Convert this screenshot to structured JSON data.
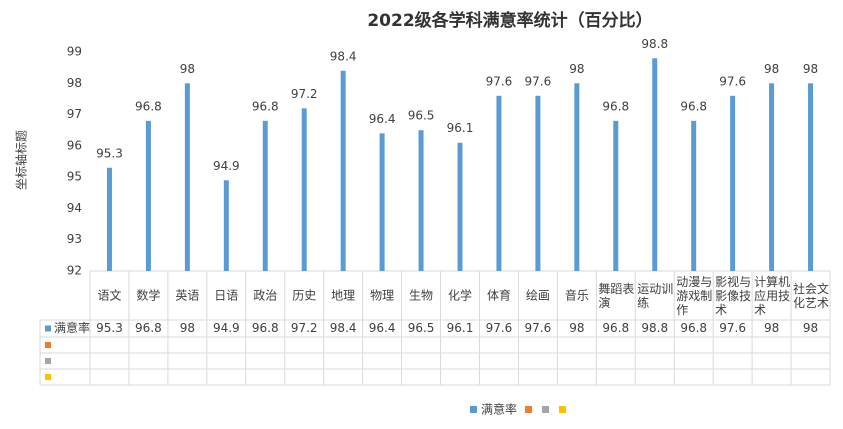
{
  "chart_data": {
    "type": "bar",
    "title": "2022级各学科满意率统计（百分比）",
    "y_label": "坐标轴标题",
    "categories": [
      "语文",
      "数学",
      "英语",
      "日语",
      "政治",
      "历史",
      "地理",
      "物理",
      "生物",
      "化学",
      "体育",
      "绘画",
      "音乐",
      "舞蹈表演",
      "运动训练",
      "动漫与游戏制作",
      "影视与影像技术",
      "计算机应用技术",
      "社会文化艺术"
    ],
    "series": [
      {
        "name": "满意率",
        "color": "#5b9bd5",
        "values": [
          95.3,
          96.8,
          98,
          94.9,
          96.8,
          97.2,
          98.4,
          96.4,
          96.5,
          96.1,
          97.6,
          97.6,
          98,
          96.8,
          98.8,
          96.8,
          97.6,
          98,
          98
        ]
      },
      {
        "color": "#ed7d31"
      },
      {
        "color": "#a5a5a5"
      },
      {
        "color": "#ffc000"
      }
    ],
    "ylim": [
      92,
      99
    ],
    "yticks": [
      92,
      93,
      94,
      95,
      96,
      97,
      98,
      99
    ],
    "data_table": true,
    "legend": "bottom"
  }
}
